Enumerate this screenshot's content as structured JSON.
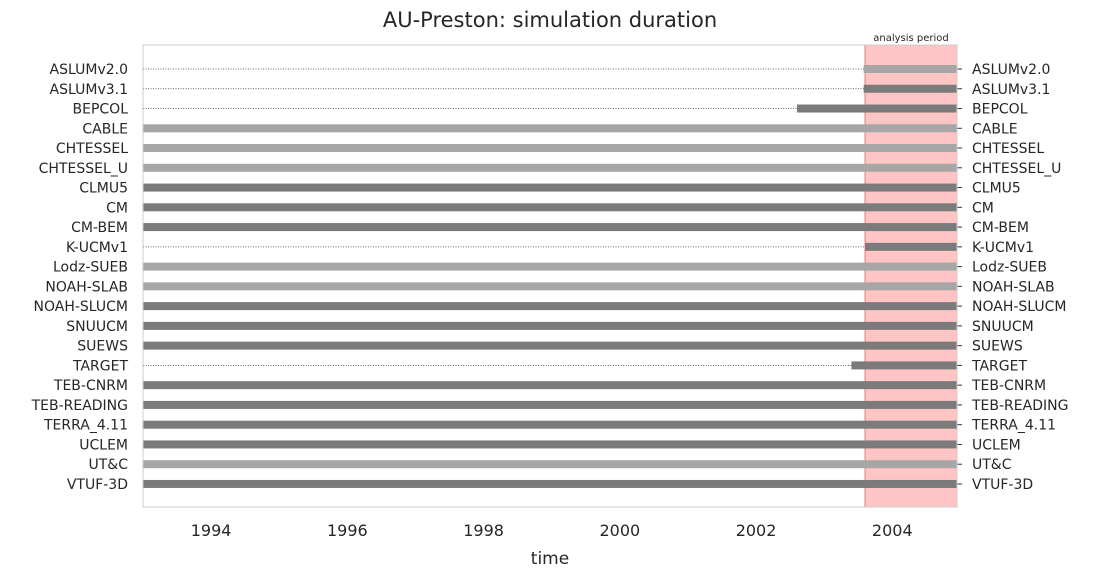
{
  "chart_data": {
    "type": "bar",
    "title": "AU-Preston: simulation duration",
    "xlabel": "time",
    "ylabel": "",
    "xlim": [
      1993.0,
      2004.95
    ],
    "x_ticks": [
      1994,
      1996,
      1998,
      2000,
      2002,
      2004
    ],
    "grid": false,
    "annotation": {
      "label": "analysis period",
      "start": 2003.6,
      "end": 2004.95,
      "color": "#ffc4c4"
    },
    "series": [
      {
        "model": "ASLUMv2.0",
        "start": 2003.58,
        "end": 2004.95,
        "shade": "light"
      },
      {
        "model": "ASLUMv3.1",
        "start": 2003.58,
        "end": 2004.95,
        "shade": "dark"
      },
      {
        "model": "BEPCOL",
        "start": 2002.6,
        "end": 2004.95,
        "shade": "dark"
      },
      {
        "model": "CABLE",
        "start": 1993.0,
        "end": 2004.95,
        "shade": "light"
      },
      {
        "model": "CHTESSEL",
        "start": 1993.0,
        "end": 2004.95,
        "shade": "light"
      },
      {
        "model": "CHTESSEL_U",
        "start": 1993.0,
        "end": 2004.95,
        "shade": "light"
      },
      {
        "model": "CLMU5",
        "start": 1993.0,
        "end": 2004.95,
        "shade": "dark"
      },
      {
        "model": "CM",
        "start": 1993.0,
        "end": 2004.95,
        "shade": "dark"
      },
      {
        "model": "CM-BEM",
        "start": 1993.0,
        "end": 2004.95,
        "shade": "dark"
      },
      {
        "model": "K-UCMv1",
        "start": 2003.6,
        "end": 2004.95,
        "shade": "dark"
      },
      {
        "model": "Lodz-SUEB",
        "start": 1993.0,
        "end": 2004.95,
        "shade": "light"
      },
      {
        "model": "NOAH-SLAB",
        "start": 1993.0,
        "end": 2004.95,
        "shade": "light"
      },
      {
        "model": "NOAH-SLUCM",
        "start": 1993.0,
        "end": 2004.95,
        "shade": "dark"
      },
      {
        "model": "SNUUCM",
        "start": 1993.0,
        "end": 2004.95,
        "shade": "dark"
      },
      {
        "model": "SUEWS",
        "start": 1993.0,
        "end": 2004.95,
        "shade": "dark"
      },
      {
        "model": "TARGET",
        "start": 2003.4,
        "end": 2004.95,
        "shade": "dark"
      },
      {
        "model": "TEB-CNRM",
        "start": 1993.0,
        "end": 2004.95,
        "shade": "dark"
      },
      {
        "model": "TEB-READING",
        "start": 1993.0,
        "end": 2004.95,
        "shade": "dark"
      },
      {
        "model": "TERRA_4.11",
        "start": 1993.0,
        "end": 2004.95,
        "shade": "dark"
      },
      {
        "model": "UCLEM",
        "start": 1993.0,
        "end": 2004.95,
        "shade": "dark"
      },
      {
        "model": "UT&C",
        "start": 1993.0,
        "end": 2004.95,
        "shade": "light"
      },
      {
        "model": "VTUF-3D",
        "start": 1993.0,
        "end": 2004.95,
        "shade": "dark"
      }
    ],
    "colors": {
      "light": "#a6a6a6",
      "dark": "#7b7b7b",
      "axes": "#cccccc",
      "dotted": "#333333"
    }
  }
}
